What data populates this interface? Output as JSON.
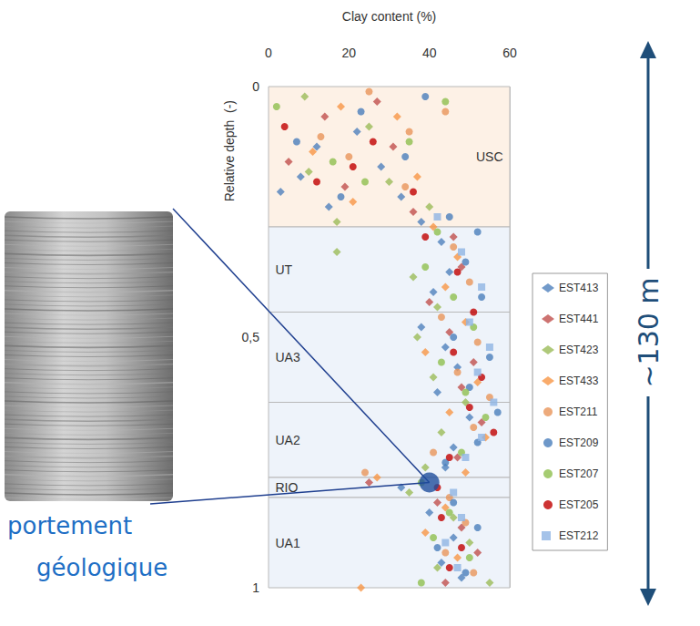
{
  "chart_data": {
    "type": "scatter",
    "x_label": "Clay content (%)",
    "y_label": "Relative depth  (-)",
    "xlim": [
      0,
      60
    ],
    "xticks": [
      0,
      20,
      40,
      60
    ],
    "ylim": [
      0,
      1
    ],
    "yticks": [
      0,
      {
        "value": 0.5,
        "label": "0,5"
      },
      1
    ],
    "grid": true,
    "legend": "right",
    "zones": [
      {
        "label": "USC",
        "from": 0,
        "to": 0.28,
        "color": "#fdf1e6"
      },
      {
        "label": "UT",
        "from": 0.28,
        "to": 0.45,
        "color": "#eef3fa"
      },
      {
        "label": "UA3",
        "from": 0.45,
        "to": 0.63,
        "color": "#eef3fa"
      },
      {
        "label": "UA2",
        "from": 0.63,
        "to": 0.78,
        "color": "#eef3fa"
      },
      {
        "label": "RIO",
        "from": 0.78,
        "to": 0.82,
        "color": "#eef3fa"
      },
      {
        "label": "UA1",
        "from": 0.82,
        "to": 1,
        "color": "#eef3fa"
      }
    ],
    "highlight": {
      "x": 40,
      "y": 0.79,
      "color": "#1f4e9c"
    },
    "scale_label": "~130 m",
    "caption": [
      "portement",
      "géologique"
    ],
    "series": [
      {
        "name": "EST413",
        "color": "#4f81bd",
        "marker": "diamond",
        "values": [
          [
            3,
            0.21
          ],
          [
            8,
            0.18
          ],
          [
            12,
            0.12
          ],
          [
            15,
            0.24
          ],
          [
            22,
            0.09
          ],
          [
            28,
            0.16
          ],
          [
            33,
            0.22
          ],
          [
            38,
            0.27
          ],
          [
            43,
            0.31
          ],
          [
            45,
            0.37
          ],
          [
            41,
            0.41
          ],
          [
            38,
            0.48
          ],
          [
            44,
            0.52
          ],
          [
            47,
            0.56
          ],
          [
            42,
            0.61
          ],
          [
            50,
            0.66
          ],
          [
            46,
            0.72
          ],
          [
            44,
            0.76
          ],
          [
            33,
            0.8
          ],
          [
            40,
            0.85
          ],
          [
            46,
            0.9
          ],
          [
            43,
            0.95
          ],
          [
            48,
            0.98
          ]
        ]
      },
      {
        "name": "EST441",
        "color": "#c0504d",
        "marker": "diamond",
        "values": [
          [
            5,
            0.15
          ],
          [
            14,
            0.06
          ],
          [
            19,
            0.2
          ],
          [
            27,
            0.03
          ],
          [
            31,
            0.12
          ],
          [
            36,
            0.25
          ],
          [
            46,
            0.3
          ],
          [
            48,
            0.36
          ],
          [
            40,
            0.43
          ],
          [
            45,
            0.49
          ],
          [
            51,
            0.55
          ],
          [
            48,
            0.6
          ],
          [
            53,
            0.67
          ],
          [
            47,
            0.74
          ],
          [
            25,
            0.79
          ],
          [
            42,
            0.83
          ],
          [
            48,
            0.88
          ],
          [
            52,
            0.93
          ],
          [
            44,
            0.99
          ]
        ]
      },
      {
        "name": "EST423",
        "color": "#9bbb59",
        "marker": "diamond",
        "values": [
          [
            9,
            0.02
          ],
          [
            10,
            0.17
          ],
          [
            17,
            0.27
          ],
          [
            25,
            0.08
          ],
          [
            30,
            0.19
          ],
          [
            40,
            0.24
          ],
          [
            17,
            0.33
          ],
          [
            36,
            0.38
          ],
          [
            42,
            0.44
          ],
          [
            37,
            0.5
          ],
          [
            41,
            0.58
          ],
          [
            49,
            0.63
          ],
          [
            43,
            0.69
          ],
          [
            39,
            0.76
          ],
          [
            35,
            0.81
          ],
          [
            46,
            0.86
          ],
          [
            50,
            0.91
          ],
          [
            42,
            0.96
          ],
          [
            55,
            0.99
          ]
        ]
      },
      {
        "name": "EST433",
        "color": "#f79646",
        "marker": "diamond",
        "values": [
          [
            11,
            0.13
          ],
          [
            18,
            0.04
          ],
          [
            21,
            0.23
          ],
          [
            32,
            0.06
          ],
          [
            37,
            0.18
          ],
          [
            41,
            0.28
          ],
          [
            47,
            0.34
          ],
          [
            44,
            0.4
          ],
          [
            49,
            0.47
          ],
          [
            39,
            0.53
          ],
          [
            52,
            0.59
          ],
          [
            45,
            0.65
          ],
          [
            54,
            0.7
          ],
          [
            49,
            0.77
          ],
          [
            27,
            0.78
          ],
          [
            44,
            0.84
          ],
          [
            39,
            0.89
          ],
          [
            47,
            0.94
          ],
          [
            23,
            1.0
          ]
        ]
      },
      {
        "name": "EST211",
        "color": "#e8955a",
        "marker": "circle",
        "values": [
          [
            13,
            0.1
          ],
          [
            20,
            0.14
          ],
          [
            25,
            0.01
          ],
          [
            34,
            0.2
          ],
          [
            35,
            0.09
          ],
          [
            44,
            0.05
          ],
          [
            46,
            0.32
          ],
          [
            50,
            0.39
          ],
          [
            43,
            0.46
          ],
          [
            52,
            0.51
          ],
          [
            47,
            0.57
          ],
          [
            55,
            0.62
          ],
          [
            51,
            0.68
          ],
          [
            41,
            0.73
          ],
          [
            24,
            0.77
          ],
          [
            45,
            0.82
          ],
          [
            49,
            0.87
          ],
          [
            44,
            0.93
          ],
          [
            51,
            0.97
          ]
        ]
      },
      {
        "name": "EST209",
        "color": "#4a7ebb",
        "marker": "circle",
        "values": [
          [
            7,
            0.11
          ],
          [
            18,
            0.22
          ],
          [
            23,
            0.05
          ],
          [
            34,
            0.14
          ],
          [
            39,
            0.02
          ],
          [
            45,
            0.26
          ],
          [
            52,
            0.29
          ],
          [
            49,
            0.35
          ],
          [
            53,
            0.42
          ],
          [
            46,
            0.5
          ],
          [
            55,
            0.54
          ],
          [
            50,
            0.6
          ],
          [
            57,
            0.65
          ],
          [
            52,
            0.71
          ],
          [
            44,
            0.75
          ],
          [
            46,
            0.83
          ],
          [
            52,
            0.88
          ],
          [
            42,
            0.92
          ],
          [
            49,
            0.97
          ]
        ]
      },
      {
        "name": "EST207",
        "color": "#8fbf4f",
        "marker": "circle",
        "values": [
          [
            2,
            0.04
          ],
          [
            16,
            0.15
          ],
          [
            24,
            0.19
          ],
          [
            35,
            0.11
          ],
          [
            44,
            0.03
          ],
          [
            42,
            0.29
          ],
          [
            39,
            0.36
          ],
          [
            46,
            0.42
          ],
          [
            51,
            0.48
          ],
          [
            43,
            0.55
          ],
          [
            49,
            0.61
          ],
          [
            54,
            0.66
          ],
          [
            48,
            0.73
          ],
          [
            38,
            0.79
          ],
          [
            45,
            0.85
          ],
          [
            41,
            0.9
          ],
          [
            50,
            0.94
          ],
          [
            38,
            0.99
          ]
        ]
      },
      {
        "name": "EST205",
        "color": "#c00000",
        "marker": "circle",
        "values": [
          [
            4,
            0.08
          ],
          [
            12,
            0.19
          ],
          [
            21,
            0.16
          ],
          [
            26,
            0.11
          ],
          [
            36,
            0.21
          ],
          [
            39,
            0.3
          ],
          [
            47,
            0.37
          ],
          [
            51,
            0.45
          ],
          [
            46,
            0.53
          ],
          [
            53,
            0.58
          ],
          [
            50,
            0.64
          ],
          [
            56,
            0.69
          ],
          [
            45,
            0.74
          ],
          [
            42,
            0.8
          ],
          [
            43,
            0.86
          ],
          [
            48,
            0.92
          ],
          [
            45,
            0.96
          ]
        ]
      },
      {
        "name": "EST212",
        "color": "#8fb4e3",
        "marker": "square",
        "values": [
          [
            42,
            0.26
          ],
          [
            48,
            0.33
          ],
          [
            53,
            0.4
          ],
          [
            50,
            0.47
          ],
          [
            55,
            0.52
          ],
          [
            52,
            0.57
          ],
          [
            56,
            0.63
          ],
          [
            53,
            0.7
          ],
          [
            49,
            0.74
          ],
          [
            46,
            0.81
          ],
          [
            48,
            0.86
          ],
          [
            44,
            0.91
          ],
          [
            47,
            0.96
          ]
        ]
      }
    ]
  }
}
